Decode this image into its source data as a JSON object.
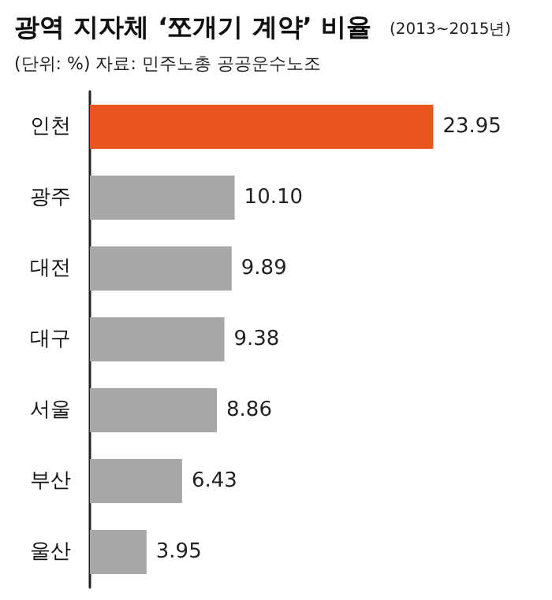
{
  "chart_data": {
    "type": "bar",
    "orientation": "horizontal",
    "title": "광역 지자체 ‘쪼개기 계약’ 비율",
    "subtitle": "(2013~2015년)",
    "annotations": [
      "(단위: %) 자료: 민주노총 공공운수노조"
    ],
    "categories": [
      "인천",
      "광주",
      "대전",
      "대구",
      "서울",
      "부산",
      "울산"
    ],
    "values": [
      23.95,
      10.1,
      9.89,
      9.38,
      8.86,
      6.43,
      3.95
    ],
    "value_labels": [
      "23.95",
      "10.10",
      "9.89",
      "9.38",
      "8.86",
      "6.43",
      "3.95"
    ],
    "colors": [
      "#e8561e",
      "#a7a7a7",
      "#a7a7a7",
      "#a7a7a7",
      "#a7a7a7",
      "#a7a7a7",
      "#a7a7a7"
    ]
  }
}
